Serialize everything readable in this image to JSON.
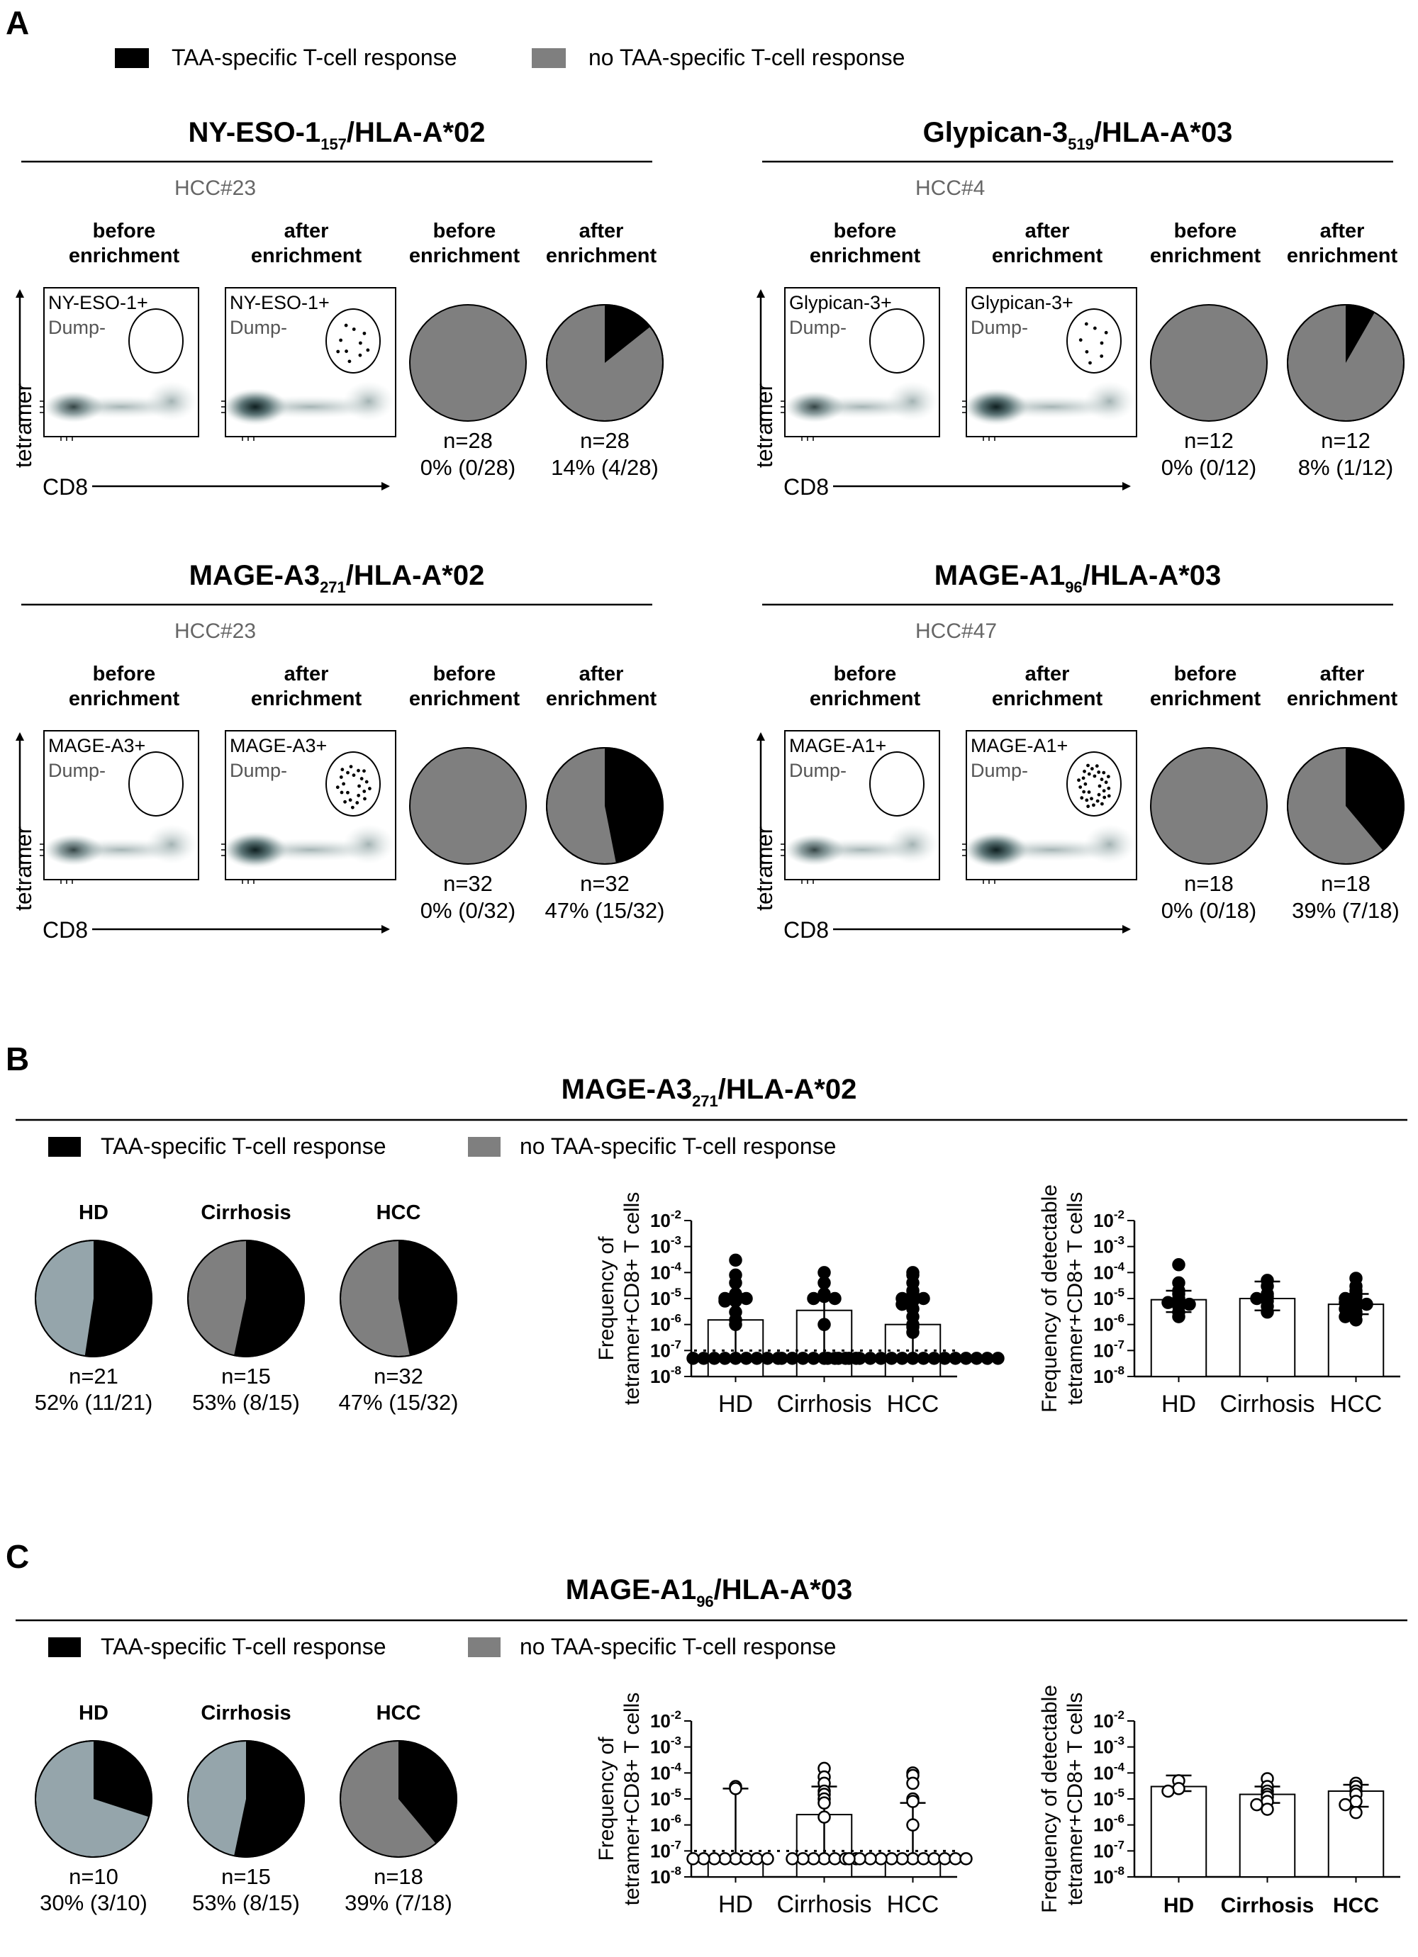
{
  "colors": {
    "response": "#000000",
    "no_response": "#7f7f7f",
    "hd_no_response": "#95a5ab",
    "density": "#3d5a5c"
  },
  "panelA": {
    "label": "A",
    "legend": {
      "response": "TAA-specific T-cell response",
      "no_response": "no TAA-specific T-cell response"
    },
    "subpanels": [
      {
        "title_main": "NY-ESO-1",
        "title_sub": "157",
        "title_rest": "/HLA-A*02",
        "patient": "HCC#23",
        "tet_label": "NY-ESO-1+",
        "dump_label": "Dump-",
        "col_before": [
          "before",
          "enrichment"
        ],
        "col_after": [
          "after",
          "enrichment"
        ],
        "y_axis": "tetramer",
        "x_axis": "CD8",
        "pies": [
          {
            "n": "n=28",
            "pct": "0% (0/28)",
            "fraction": 0
          },
          {
            "n": "n=28",
            "pct": "14% (4/28)",
            "fraction": 0.143
          }
        ],
        "dots": 10
      },
      {
        "title_main": "Glypican-3",
        "title_sub": "519",
        "title_rest": "/HLA-A*03",
        "patient": "HCC#4",
        "tet_label": "Glypican-3+",
        "dump_label": "Dump-",
        "col_before": [
          "before",
          "enrichment"
        ],
        "col_after": [
          "after",
          "enrichment"
        ],
        "y_axis": "tetramer",
        "x_axis": "CD8",
        "pies": [
          {
            "n": "n=12",
            "pct": "0% (0/12)",
            "fraction": 0
          },
          {
            "n": "n=12",
            "pct": "8% (1/12)",
            "fraction": 0.083
          }
        ],
        "dots": 8
      },
      {
        "title_main": "MAGE-A3",
        "title_sub": "271",
        "title_rest": "/HLA-A*02",
        "patient": "HCC#23",
        "tet_label": "MAGE-A3+",
        "dump_label": "Dump-",
        "col_before": [
          "before",
          "enrichment"
        ],
        "col_after": [
          "after",
          "enrichment"
        ],
        "y_axis": "tetramer",
        "x_axis": "CD8",
        "pies": [
          {
            "n": "n=32",
            "pct": "0% (0/32)",
            "fraction": 0
          },
          {
            "n": "n=32",
            "pct": "47% (15/32)",
            "fraction": 0.469
          }
        ],
        "dots": 22
      },
      {
        "title_main": "MAGE-A1",
        "title_sub": "96",
        "title_rest": "/HLA-A*03",
        "patient": "HCC#47",
        "tet_label": "MAGE-A1+",
        "dump_label": "Dump-",
        "col_before": [
          "before",
          "enrichment"
        ],
        "col_after": [
          "after",
          "enrichment"
        ],
        "y_axis": "tetramer",
        "x_axis": "CD8",
        "pies": [
          {
            "n": "n=18",
            "pct": "0% (0/18)",
            "fraction": 0
          },
          {
            "n": "n=18",
            "pct": "39% (7/18)",
            "fraction": 0.389
          }
        ],
        "dots": 30
      }
    ]
  },
  "panelB": {
    "label": "B",
    "title_main": "MAGE-A3",
    "title_sub": "271",
    "title_rest": "/HLA-A*02",
    "legend": {
      "response": "TAA-specific T-cell response",
      "no_response": "no TAA-specific T-cell response"
    },
    "pies": [
      {
        "group": "HD",
        "n": "n=21",
        "pct": "52% (11/21)",
        "fraction": 0.524
      },
      {
        "group": "Cirrhosis",
        "n": "n=15",
        "pct": "53% (8/15)",
        "fraction": 0.533
      },
      {
        "group": "HCC",
        "n": "n=32",
        "pct": "47% (15/32)",
        "fraction": 0.469
      }
    ],
    "plot1": {
      "ylabel": [
        "Frequency of",
        "tetramer+CD8+ T cells"
      ],
      "categories": [
        "HD",
        "Cirrhosis",
        "HCC"
      ],
      "ytick_exponents": [
        "-2",
        "-3",
        "-4",
        "-5",
        "-6",
        "-7",
        "-8"
      ],
      "detection_limit": 1e-07,
      "filled": true,
      "bars": [
        1.5e-06,
        3.5e-06,
        1e-06
      ],
      "err_low": [
        5e-08,
        5e-08,
        5e-08
      ],
      "err_high": [
        1.5e-05,
        1.2e-05,
        1e-05
      ],
      "points": [
        [
          0.0003,
          8e-05,
          4e-05,
          1.5e-05,
          1.2e-05,
          1e-05,
          1e-05,
          8e-06,
          8e-06,
          3e-06,
          1.5e-06,
          1e-06,
          5e-08,
          5e-08,
          5e-08,
          5e-08,
          5e-08,
          5e-08,
          5e-08,
          5e-08,
          5e-08
        ],
        [
          0.0001,
          4e-05,
          1.5e-05,
          1.2e-05,
          1e-05,
          1e-05,
          1e-06,
          5e-08,
          5e-08,
          5e-08,
          5e-08,
          5e-08,
          5e-08,
          5e-08,
          5e-08
        ],
        [
          0.0001,
          8e-05,
          4e-05,
          2e-05,
          1.5e-05,
          1.2e-05,
          1e-05,
          1e-05,
          8e-06,
          6e-06,
          4e-06,
          2e-06,
          1e-06,
          8e-07,
          5e-07,
          5e-08,
          5e-08,
          5e-08,
          5e-08,
          5e-08,
          5e-08,
          5e-08,
          5e-08,
          5e-08,
          5e-08,
          5e-08,
          5e-08,
          5e-08,
          5e-08,
          5e-08,
          5e-08,
          5e-08
        ]
      ]
    },
    "plot2": {
      "ylabel": [
        "Frequency of detectable",
        "tetramer+CD8+ T cells"
      ],
      "categories": [
        "HD",
        "Cirrhosis",
        "HCC"
      ],
      "ytick_exponents": [
        "-2",
        "-3",
        "-4",
        "-5",
        "-6",
        "-7",
        "-8"
      ],
      "filled": true,
      "bars": [
        9e-06,
        1e-05,
        6e-06
      ],
      "err_low": [
        3e-06,
        3.5e-06,
        2.5e-06
      ],
      "err_high": [
        2e-05,
        4.5e-05,
        1.5e-05
      ],
      "points": [
        [
          0.0002,
          4e-05,
          2e-05,
          1.5e-05,
          1e-05,
          8e-06,
          7e-06,
          6e-06,
          5e-06,
          3e-06,
          2e-06
        ],
        [
          5e-05,
          3e-05,
          1.5e-05,
          1.2e-05,
          1e-05,
          8e-06,
          5e-06,
          3e-06
        ],
        [
          6e-05,
          3e-05,
          2e-05,
          1.5e-05,
          1.2e-05,
          1e-05,
          8e-06,
          7e-06,
          6e-06,
          5e-06,
          4e-06,
          3e-06,
          2.5e-06,
          2e-06,
          1.5e-06
        ]
      ]
    }
  },
  "panelC": {
    "label": "C",
    "title_main": "MAGE-A1",
    "title_sub": "96",
    "title_rest": "/HLA-A*03",
    "legend": {
      "response": "TAA-specific T-cell response",
      "no_response": "no TAA-specific T-cell response"
    },
    "pies": [
      {
        "group": "HD",
        "n": "n=10",
        "pct": "30% (3/10)",
        "fraction": 0.3
      },
      {
        "group": "Cirrhosis",
        "n": "n=15",
        "pct": "53% (8/15)",
        "fraction": 0.533
      },
      {
        "group": "HCC",
        "n": "n=18",
        "pct": "39% (7/18)",
        "fraction": 0.389
      }
    ],
    "plot1": {
      "ylabel": [
        "Frequency of",
        "tetramer+CD8+ T cells"
      ],
      "categories": [
        "HD",
        "Cirrhosis",
        "HCC"
      ],
      "ytick_exponents": [
        "-2",
        "-3",
        "-4",
        "-5",
        "-6",
        "-7",
        "-8"
      ],
      "detection_limit": 1e-07,
      "filled": false,
      "bars": [
        5e-08,
        2.5e-06,
        5e-08
      ],
      "err_low": [
        5e-08,
        5e-08,
        5e-08
      ],
      "err_high": [
        2.5e-05,
        3e-05,
        7e-06
      ],
      "points": [
        [
          3e-05,
          2.5e-05,
          5e-08,
          5e-08,
          5e-08,
          5e-08,
          5e-08,
          5e-08,
          5e-08,
          5e-08
        ],
        [
          0.00015,
          7e-05,
          4e-05,
          2e-05,
          1.5e-05,
          1e-05,
          7e-06,
          2e-06,
          5e-08,
          5e-08,
          5e-08,
          5e-08,
          5e-08,
          5e-08,
          5e-08
        ],
        [
          0.0001,
          8e-05,
          4e-05,
          1e-05,
          8e-06,
          1e-06,
          5e-08,
          5e-08,
          5e-08,
          5e-08,
          5e-08,
          5e-08,
          5e-08,
          5e-08,
          5e-08,
          5e-08,
          5e-08,
          5e-08
        ]
      ]
    },
    "plot2": {
      "ylabel": [
        "Frequency of detectable",
        "tetramer+CD8+ T cells"
      ],
      "categories": [
        "HD",
        "Cirrhosis",
        "HCC"
      ],
      "ytick_exponents": [
        "-2",
        "-3",
        "-4",
        "-5",
        "-6",
        "-7",
        "-8"
      ],
      "filled": false,
      "bold_ticks": true,
      "bars": [
        3e-05,
        1.5e-05,
        2e-05
      ],
      "err_low": [
        2e-05,
        7e-06,
        5e-06
      ],
      "err_high": [
        8e-05,
        3e-05,
        3.5e-05
      ],
      "points": [
        [
          5e-05,
          2.5e-05,
          2e-05
        ],
        [
          6e-05,
          3e-05,
          2e-05,
          1.5e-05,
          1.2e-05,
          8e-06,
          6e-06,
          4e-06
        ],
        [
          4e-05,
          3e-05,
          2e-05,
          1.5e-05,
          8e-06,
          6e-06,
          3e-06
        ]
      ]
    }
  }
}
